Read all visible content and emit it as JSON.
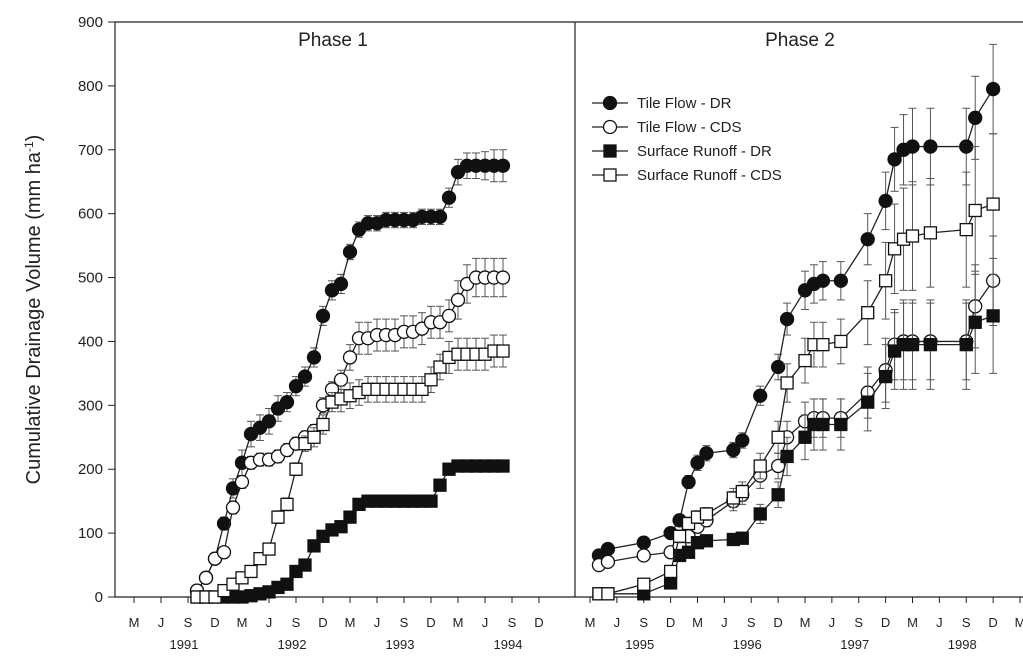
{
  "chart_data": {
    "type": "line",
    "ylabel": "Cumulative Drainage Volume (mm ha",
    "ylabel_sup": "-1",
    "ylabel_end": ")",
    "ylim": [
      0,
      900
    ],
    "y_ticks": [
      0,
      100,
      200,
      300,
      400,
      500,
      600,
      700,
      800,
      900
    ],
    "grid": false,
    "legend_placement": "upper-left of right panel",
    "marker_colors": {
      "filled": "#111111",
      "open": "#ffffff",
      "line": "#222222",
      "error_bar": "#555555"
    },
    "series_legend": [
      {
        "name": "Tile Flow - DR",
        "marker": "circle",
        "fill": "filled"
      },
      {
        "name": "Tile Flow - CDS",
        "marker": "circle",
        "fill": "open"
      },
      {
        "name": "Surface Runoff - DR",
        "marker": "square",
        "fill": "filled"
      },
      {
        "name": "Surface Runoff - CDS",
        "marker": "square",
        "fill": "open"
      }
    ],
    "panels": [
      {
        "title": "Phase 1",
        "month_labels": [
          "M",
          "J",
          "S",
          "D",
          "M",
          "J",
          "S",
          "D",
          "M",
          "J",
          "S",
          "D",
          "M",
          "J",
          "S",
          "D"
        ],
        "years": [
          "1991",
          "1992",
          "1993",
          "1994"
        ],
        "x_start": "1991-03",
        "series": [
          {
            "name": "Tile Flow - DR",
            "x": [
              "1991-10",
              "1991-11",
              "1991-12",
              "1992-01",
              "1992-02",
              "1992-03",
              "1992-04",
              "1992-05",
              "1992-06",
              "1992-07",
              "1992-08",
              "1992-09",
              "1992-10",
              "1992-11",
              "1992-12",
              "1993-01",
              "1993-02",
              "1993-03",
              "1993-04",
              "1993-05",
              "1993-06",
              "1993-07",
              "1993-08",
              "1993-09",
              "1993-10",
              "1993-11",
              "1993-12",
              "1994-01",
              "1994-02",
              "1994-03",
              "1994-04",
              "1994-05",
              "1994-06",
              "1994-07",
              "1994-08"
            ],
            "y": [
              10,
              30,
              60,
              115,
              170,
              210,
              255,
              265,
              275,
              295,
              305,
              330,
              345,
              375,
              440,
              480,
              490,
              540,
              575,
              585,
              585,
              590,
              590,
              590,
              590,
              595,
              595,
              595,
              625,
              665,
              675,
              675,
              675,
              675,
              675
            ],
            "error": [
              0,
              0,
              0,
              10,
              15,
              20,
              20,
              20,
              20,
              20,
              15,
              15,
              15,
              15,
              15,
              15,
              15,
              12,
              12,
              12,
              12,
              12,
              12,
              12,
              12,
              12,
              12,
              12,
              15,
              20,
              20,
              20,
              22,
              25,
              25
            ]
          },
          {
            "name": "Tile Flow - CDS",
            "x": [
              "1991-10",
              "1991-11",
              "1991-12",
              "1992-01",
              "1992-02",
              "1992-03",
              "1992-04",
              "1992-05",
              "1992-06",
              "1992-07",
              "1992-08",
              "1992-09",
              "1992-10",
              "1992-11",
              "1992-12",
              "1993-01",
              "1993-02",
              "1993-03",
              "1993-04",
              "1993-05",
              "1993-06",
              "1993-07",
              "1993-08",
              "1993-09",
              "1993-10",
              "1993-11",
              "1993-12",
              "1994-01",
              "1994-02",
              "1994-03",
              "1994-04",
              "1994-05",
              "1994-06",
              "1994-07",
              "1994-08"
            ],
            "y": [
              10,
              30,
              60,
              70,
              140,
              180,
              210,
              215,
              215,
              220,
              230,
              240,
              250,
              260,
              300,
              325,
              340,
              375,
              405,
              405,
              410,
              410,
              410,
              415,
              415,
              420,
              430,
              430,
              440,
              465,
              490,
              500,
              500,
              500,
              500
            ],
            "error": [
              0,
              0,
              0,
              8,
              10,
              10,
              10,
              10,
              10,
              10,
              10,
              10,
              10,
              10,
              12,
              12,
              15,
              20,
              25,
              25,
              25,
              25,
              25,
              25,
              25,
              25,
              25,
              25,
              25,
              30,
              30,
              30,
              30,
              30,
              30
            ]
          },
          {
            "name": "Surface Runoff - DR",
            "x": [
              "1991-10",
              "1991-11",
              "1991-12",
              "1992-01",
              "1992-02",
              "1992-03",
              "1992-04",
              "1992-05",
              "1992-06",
              "1992-07",
              "1992-08",
              "1992-09",
              "1992-10",
              "1992-11",
              "1992-12",
              "1993-01",
              "1993-02",
              "1993-03",
              "1993-04",
              "1993-05",
              "1993-06",
              "1993-07",
              "1993-08",
              "1993-09",
              "1993-10",
              "1993-11",
              "1993-12",
              "1994-01",
              "1994-02",
              "1994-03",
              "1994-04",
              "1994-05",
              "1994-06",
              "1994-07",
              "1994-08"
            ],
            "y": [
              0,
              0,
              0,
              0,
              0,
              0,
              2,
              5,
              8,
              15,
              20,
              40,
              50,
              80,
              95,
              105,
              110,
              125,
              145,
              150,
              150,
              150,
              150,
              150,
              150,
              150,
              150,
              175,
              200,
              205,
              205,
              205,
              205,
              205,
              205
            ],
            "error": [
              0,
              0,
              0,
              0,
              0,
              0,
              0,
              0,
              0,
              3,
              3,
              5,
              5,
              8,
              8,
              8,
              8,
              8,
              8,
              8,
              8,
              8,
              8,
              8,
              8,
              8,
              8,
              8,
              8,
              8,
              8,
              8,
              8,
              8,
              8
            ]
          },
          {
            "name": "Surface Runoff - CDS",
            "x": [
              "1991-10",
              "1991-11",
              "1991-12",
              "1992-01",
              "1992-02",
              "1992-03",
              "1992-04",
              "1992-05",
              "1992-06",
              "1992-07",
              "1992-08",
              "1992-09",
              "1992-10",
              "1992-11",
              "1992-12",
              "1993-01",
              "1993-02",
              "1993-03",
              "1993-04",
              "1993-05",
              "1993-06",
              "1993-07",
              "1993-08",
              "1993-09",
              "1993-10",
              "1993-11",
              "1993-12",
              "1994-01",
              "1994-02",
              "1994-03",
              "1994-04",
              "1994-05",
              "1994-06",
              "1994-07",
              "1994-08"
            ],
            "y": [
              0,
              0,
              0,
              10,
              20,
              30,
              40,
              60,
              75,
              125,
              145,
              200,
              240,
              250,
              270,
              305,
              310,
              315,
              320,
              325,
              325,
              325,
              325,
              325,
              325,
              325,
              340,
              360,
              375,
              380,
              380,
              380,
              380,
              385,
              385
            ],
            "error": [
              0,
              0,
              0,
              0,
              0,
              0,
              3,
              5,
              8,
              10,
              10,
              10,
              12,
              15,
              15,
              15,
              20,
              20,
              20,
              20,
              20,
              20,
              20,
              20,
              20,
              20,
              20,
              20,
              25,
              25,
              25,
              25,
              25,
              25,
              25
            ]
          }
        ]
      },
      {
        "title": "Phase 2",
        "month_labels": [
          "M",
          "J",
          "S",
          "D",
          "M",
          "J",
          "S",
          "D",
          "M",
          "J",
          "S",
          "D",
          "M",
          "J",
          "S",
          "D",
          "M"
        ],
        "years": [
          "1995",
          "1996",
          "1997",
          "1998"
        ],
        "x_start": "1995-03",
        "series": [
          {
            "name": "Tile Flow - DR",
            "x": [
              "1995-04",
              "1995-05",
              "1995-09",
              "1995-12",
              "1996-01",
              "1996-02",
              "1996-03",
              "1996-04",
              "1996-07",
              "1996-08",
              "1996-10",
              "1996-12",
              "1997-01",
              "1997-03",
              "1997-04",
              "1997-05",
              "1997-07",
              "1997-10",
              "1997-12",
              "1998-01",
              "1998-02",
              "1998-03",
              "1998-05",
              "1998-09",
              "1998-10",
              "1998-12"
            ],
            "y": [
              65,
              75,
              85,
              100,
              120,
              180,
              210,
              225,
              230,
              245,
              315,
              360,
              435,
              480,
              490,
              495,
              495,
              560,
              620,
              685,
              700,
              705,
              705,
              705,
              750,
              795
            ],
            "error": [
              0,
              0,
              0,
              0,
              5,
              10,
              12,
              12,
              12,
              12,
              15,
              20,
              25,
              30,
              30,
              30,
              30,
              40,
              45,
              50,
              55,
              60,
              60,
              60,
              65,
              70
            ]
          },
          {
            "name": "Tile Flow - CDS",
            "x": [
              "1995-04",
              "1995-05",
              "1995-09",
              "1995-12",
              "1996-01",
              "1996-02",
              "1996-03",
              "1996-04",
              "1996-07",
              "1996-08",
              "1996-10",
              "1996-12",
              "1997-01",
              "1997-03",
              "1997-04",
              "1997-05",
              "1997-07",
              "1997-10",
              "1997-12",
              "1998-01",
              "1998-02",
              "1998-03",
              "1998-05",
              "1998-09",
              "1998-10",
              "1998-12"
            ],
            "y": [
              50,
              55,
              65,
              70,
              80,
              95,
              110,
              120,
              150,
              160,
              190,
              205,
              250,
              275,
              280,
              280,
              280,
              320,
              355,
              395,
              400,
              400,
              400,
              400,
              455,
              495
            ],
            "error": [
              0,
              0,
              0,
              0,
              5,
              8,
              10,
              10,
              15,
              15,
              20,
              20,
              25,
              30,
              30,
              30,
              30,
              40,
              50,
              55,
              60,
              60,
              60,
              60,
              65,
              70
            ]
          },
          {
            "name": "Surface Runoff - DR",
            "x": [
              "1995-04",
              "1995-05",
              "1995-09",
              "1995-12",
              "1996-01",
              "1996-02",
              "1996-03",
              "1996-04",
              "1996-07",
              "1996-08",
              "1996-10",
              "1996-12",
              "1997-01",
              "1997-03",
              "1997-04",
              "1997-05",
              "1997-07",
              "1997-10",
              "1997-12",
              "1998-01",
              "1998-02",
              "1998-03",
              "1998-05",
              "1998-09",
              "1998-10",
              "1998-12"
            ],
            "y": [
              5,
              5,
              5,
              22,
              65,
              70,
              85,
              88,
              90,
              92,
              130,
              160,
              220,
              250,
              270,
              270,
              270,
              305,
              345,
              385,
              395,
              395,
              395,
              395,
              430,
              440
            ],
            "error": [
              0,
              0,
              0,
              3,
              5,
              5,
              5,
              5,
              5,
              5,
              15,
              20,
              30,
              35,
              40,
              40,
              40,
              45,
              50,
              60,
              70,
              70,
              70,
              70,
              80,
              90
            ]
          },
          {
            "name": "Surface Runoff - CDS",
            "x": [
              "1995-04",
              "1995-05",
              "1995-09",
              "1995-12",
              "1996-01",
              "1996-02",
              "1996-03",
              "1996-04",
              "1996-07",
              "1996-08",
              "1996-10",
              "1996-12",
              "1997-01",
              "1997-03",
              "1997-04",
              "1997-05",
              "1997-07",
              "1997-10",
              "1997-12",
              "1998-01",
              "1998-02",
              "1998-03",
              "1998-05",
              "1998-09",
              "1998-10",
              "1998-12"
            ],
            "y": [
              5,
              5,
              20,
              40,
              95,
              115,
              125,
              130,
              155,
              165,
              205,
              250,
              335,
              370,
              395,
              395,
              400,
              445,
              495,
              545,
              560,
              565,
              570,
              575,
              605,
              615
            ],
            "error": [
              0,
              0,
              0,
              5,
              10,
              10,
              10,
              10,
              15,
              15,
              20,
              25,
              30,
              35,
              35,
              35,
              35,
              50,
              60,
              70,
              80,
              85,
              85,
              90,
              100,
              110
            ]
          }
        ]
      }
    ]
  }
}
